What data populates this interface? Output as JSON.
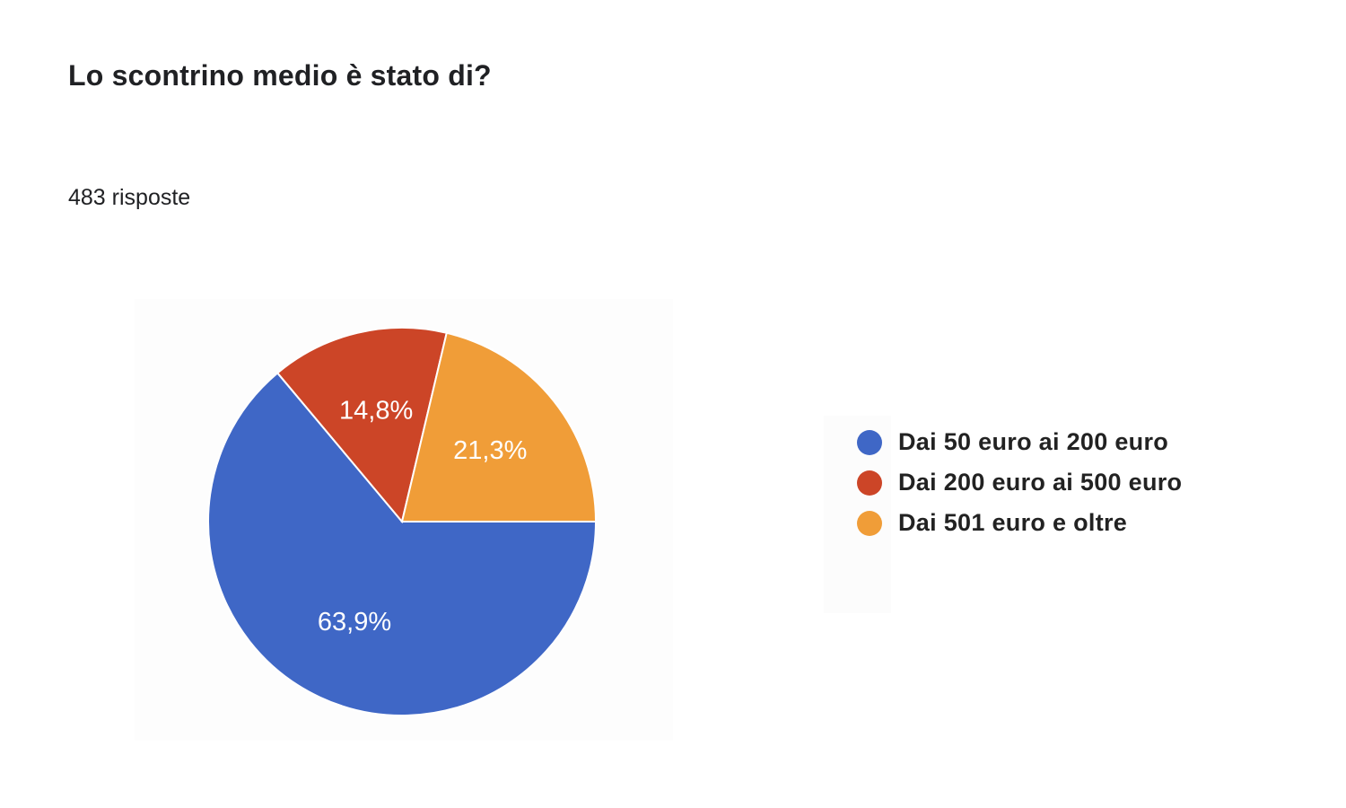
{
  "title": "Lo scontrino medio è stato di?",
  "subtitle": "483 risposte",
  "chart_data": {
    "type": "pie",
    "categories": [
      "Dai 50 euro ai 200 euro",
      "Dai 200 euro ai 500 euro",
      "Dai 501 euro e oltre"
    ],
    "values": [
      63.9,
      14.8,
      21.3
    ],
    "labels": [
      "63,9%",
      "14,8%",
      "21,3%"
    ],
    "colors": [
      "#3f67c6",
      "#cc4527",
      "#f09d38"
    ],
    "legend_position": "right"
  }
}
